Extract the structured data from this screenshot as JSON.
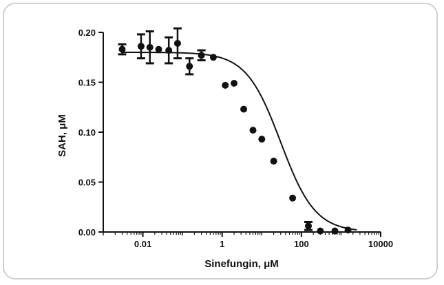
{
  "chart_data": {
    "type": "scatter",
    "title": "",
    "xlabel": "Sinefungin, μM",
    "ylabel": "SAH, μM",
    "x_scale": "log",
    "xlim": [
      0.001,
      10000
    ],
    "ylim": [
      0,
      0.2
    ],
    "x_ticks": [
      0.01,
      1,
      100,
      10000
    ],
    "x_tick_labels": [
      "0.01",
      "1",
      "100",
      "10000"
    ],
    "y_ticks": [
      0,
      0.05,
      0.1,
      0.15,
      0.2
    ],
    "y_tick_labels": [
      "0.00",
      "0.05",
      "0.10",
      "0.15",
      "0.20"
    ],
    "grid": false,
    "legend": "none",
    "colors": {
      "points": "#111111",
      "curve": "#111111",
      "axes": "#111111",
      "frame": "#cfcfcf"
    },
    "series": [
      {
        "kind": "points",
        "points": [
          {
            "x": 0.003,
            "y": 0.183,
            "err": 0.005
          },
          {
            "x": 0.009,
            "y": 0.186,
            "err": 0.012
          },
          {
            "x": 0.015,
            "y": 0.185,
            "err": 0.016
          },
          {
            "x": 0.025,
            "y": 0.183
          },
          {
            "x": 0.045,
            "y": 0.182,
            "err": 0.013
          },
          {
            "x": 0.075,
            "y": 0.189,
            "err": 0.015
          },
          {
            "x": 0.15,
            "y": 0.166,
            "err": 0.008
          },
          {
            "x": 0.3,
            "y": 0.177,
            "err": 0.005
          },
          {
            "x": 0.6,
            "y": 0.175
          },
          {
            "x": 1.2,
            "y": 0.147
          },
          {
            "x": 2.0,
            "y": 0.149
          },
          {
            "x": 3.5,
            "y": 0.123
          },
          {
            "x": 6.0,
            "y": 0.102
          },
          {
            "x": 10.0,
            "y": 0.093
          },
          {
            "x": 20.0,
            "y": 0.071
          },
          {
            "x": 60.0,
            "y": 0.034
          },
          {
            "x": 150.0,
            "y": 0.006,
            "err": 0.004
          },
          {
            "x": 300.0,
            "y": 0.001
          },
          {
            "x": 700.0,
            "y": 0.001
          },
          {
            "x": 1500.0,
            "y": 0.002
          }
        ]
      },
      {
        "kind": "fit_curve",
        "top": 0.18,
        "bottom": 0.0,
        "ic50": 30,
        "hill": 1.0
      }
    ]
  }
}
